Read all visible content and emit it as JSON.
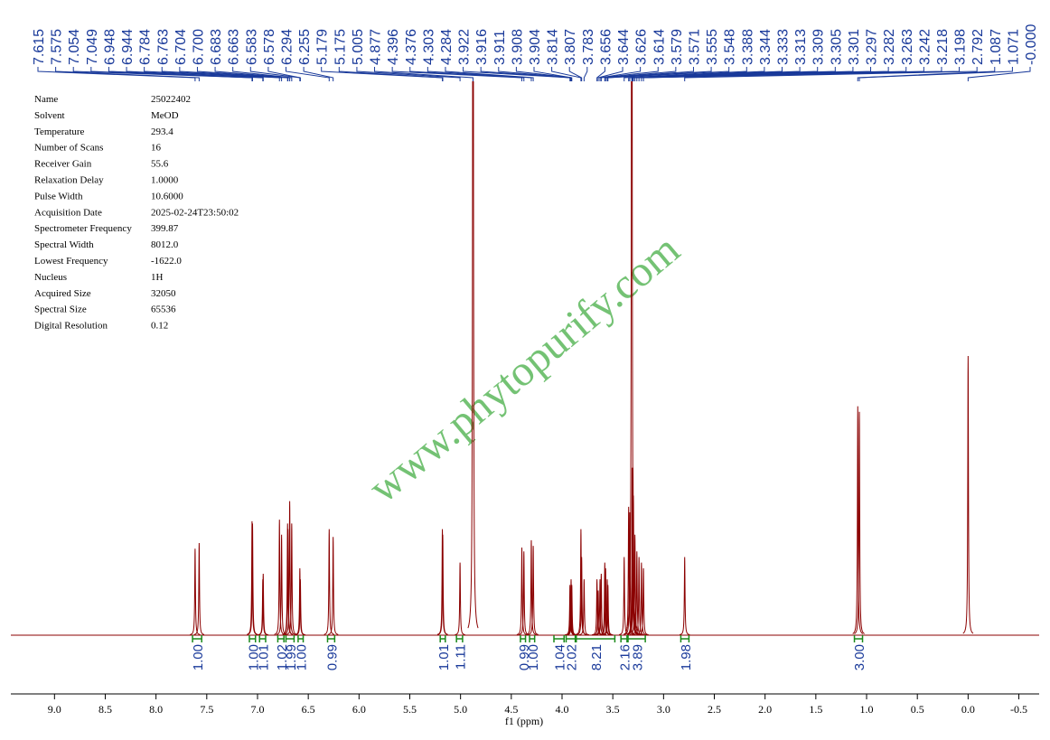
{
  "parameters": [
    [
      "Name",
      "25022402"
    ],
    [
      "Solvent",
      "MeOD"
    ],
    [
      "Temperature",
      "293.4"
    ],
    [
      "Number of Scans",
      "16"
    ],
    [
      "Receiver Gain",
      "55.6"
    ],
    [
      "Relaxation Delay",
      "1.0000"
    ],
    [
      "Pulse Width",
      "10.6000"
    ],
    [
      "Acquisition Date",
      "2025-02-24T23:50:02"
    ],
    [
      "Spectrometer Frequency",
      "399.87"
    ],
    [
      "Spectral Width",
      "8012.0"
    ],
    [
      "Lowest Frequency",
      "-1622.0"
    ],
    [
      "Nucleus",
      "1H"
    ],
    [
      "Acquired Size",
      "32050"
    ],
    [
      "Spectral Size",
      "65536"
    ],
    [
      "Digital Resolution",
      "0.12"
    ]
  ],
  "watermark": "www.phytopurify.com",
  "chart_data": {
    "type": "nmr",
    "xlabel": "f1 (ppm)",
    "color": "#8b0000",
    "xlim": [
      9.43,
      -0.7
    ],
    "ylim": [
      0,
      100
    ],
    "xticks": [
      {
        "value": 9,
        "label": "9.0"
      },
      8.5,
      {
        "value": 8,
        "label": "8.0"
      },
      7.5,
      {
        "value": 7,
        "label": "7.0"
      },
      6.5,
      {
        "value": 6,
        "label": "6.0"
      },
      5.5,
      {
        "value": 5,
        "label": "5.0"
      },
      4.5,
      {
        "value": 4,
        "label": "4.0"
      },
      3.5,
      {
        "value": 3,
        "label": "3.0"
      },
      2.5,
      {
        "value": 2,
        "label": "2.0"
      },
      1.5,
      {
        "value": 1,
        "label": "1.0"
      },
      0.5,
      {
        "value": 0,
        "label": "0.0"
      },
      -0.5
    ],
    "peaks": [
      7.615,
      7.575,
      7.054,
      7.049,
      6.948,
      6.944,
      6.784,
      6.763,
      6.704,
      {
        "value": 6.7,
        "label": "6.700"
      },
      6.683,
      6.663,
      6.583,
      6.578,
      6.294,
      6.255,
      5.179,
      5.175,
      5.005,
      4.877,
      4.396,
      4.376,
      4.303,
      4.284,
      3.922,
      3.916,
      3.911,
      3.908,
      3.904,
      3.814,
      3.807,
      3.783,
      3.656,
      3.644,
      3.626,
      3.614,
      3.579,
      3.571,
      3.555,
      3.548,
      3.388,
      3.344,
      3.333,
      3.313,
      3.309,
      3.305,
      3.301,
      3.297,
      3.282,
      3.263,
      3.242,
      3.218,
      3.198,
      2.792,
      1.087,
      1.071,
      {
        "value": 0,
        "label": "-0.000"
      }
    ],
    "heights": [
      15.5,
      16.5,
      20.4,
      20,
      10,
      11,
      20.7,
      18,
      20,
      19,
      24,
      20,
      12,
      10,
      19,
      17.6,
      19,
      18,
      13,
      200,
      15.7,
      15,
      17,
      16,
      9,
      8,
      10,
      8,
      9,
      19,
      14,
      10,
      10,
      8,
      10,
      11,
      13,
      12,
      10,
      9,
      14,
      23,
      22,
      200,
      30,
      25,
      30,
      25,
      18,
      15,
      14,
      13,
      12,
      14,
      41,
      40,
      50
    ],
    "integrals": {
      "values": [
        1,
        1,
        1.01,
        1.02,
        1.99,
        1,
        0.99,
        1.01,
        1.11,
        0.99,
        1,
        1.04,
        2.02,
        8.21,
        2.16,
        3.89,
        1.98,
        3
      ],
      "value_labels": [
        "1.00",
        "1.00",
        "1.01",
        "1.02",
        "1.99",
        "1.00",
        "0.99",
        "1.01",
        "1.11",
        "0.99",
        "1.00",
        "1.04",
        "2.02",
        "8.21",
        "2.16",
        "3.89",
        "1.98",
        "3.00"
      ],
      "regions": [
        [
          7.64,
          7.55
        ],
        [
          7.08,
          7.02
        ],
        [
          6.98,
          6.92
        ],
        [
          6.8,
          6.74
        ],
        [
          6.72,
          6.64
        ],
        [
          6.6,
          6.55
        ],
        [
          6.31,
          6.24
        ],
        [
          5.2,
          5.15
        ],
        [
          5.04,
          4.98
        ],
        [
          4.41,
          4.36
        ],
        [
          4.32,
          4.27
        ],
        [
          4.08,
          3.98
        ],
        [
          3.96,
          3.87
        ],
        [
          3.86,
          3.48
        ],
        [
          3.42,
          3.36
        ],
        [
          3.35,
          3.18
        ],
        [
          2.83,
          2.75
        ],
        [
          1.12,
          1.04
        ]
      ]
    }
  }
}
